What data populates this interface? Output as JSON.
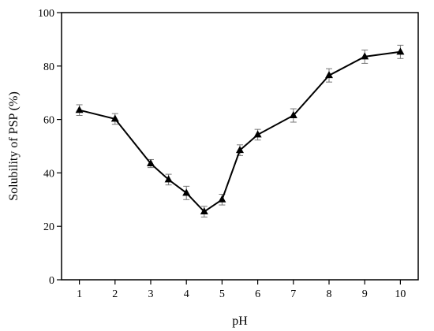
{
  "chart_data": {
    "type": "line",
    "xlabel": "pH",
    "ylabel": "Solubility of PSP (%)",
    "xlim": [
      0.5,
      10.5
    ],
    "ylim": [
      0,
      100
    ],
    "x_ticks": [
      1,
      2,
      3,
      4,
      5,
      6,
      7,
      8,
      9,
      10
    ],
    "y_ticks": [
      0,
      20,
      40,
      60,
      80,
      100
    ],
    "grid": false,
    "marker": "triangle",
    "line_color": "#000000",
    "series": [
      {
        "x": [
          1,
          2,
          3,
          3.5,
          4,
          4.5,
          5,
          5.5,
          6,
          7,
          8,
          9,
          10
        ],
        "y": [
          63.5,
          60.2,
          43.5,
          37.5,
          32.5,
          25.5,
          30.0,
          48.5,
          54.3,
          61.5,
          76.5,
          83.5,
          85.3
        ],
        "error": [
          2.0,
          2.0,
          1.5,
          2.0,
          2.5,
          2.0,
          2.0,
          2.0,
          2.0,
          2.5,
          2.5,
          2.5,
          2.5
        ]
      }
    ]
  }
}
